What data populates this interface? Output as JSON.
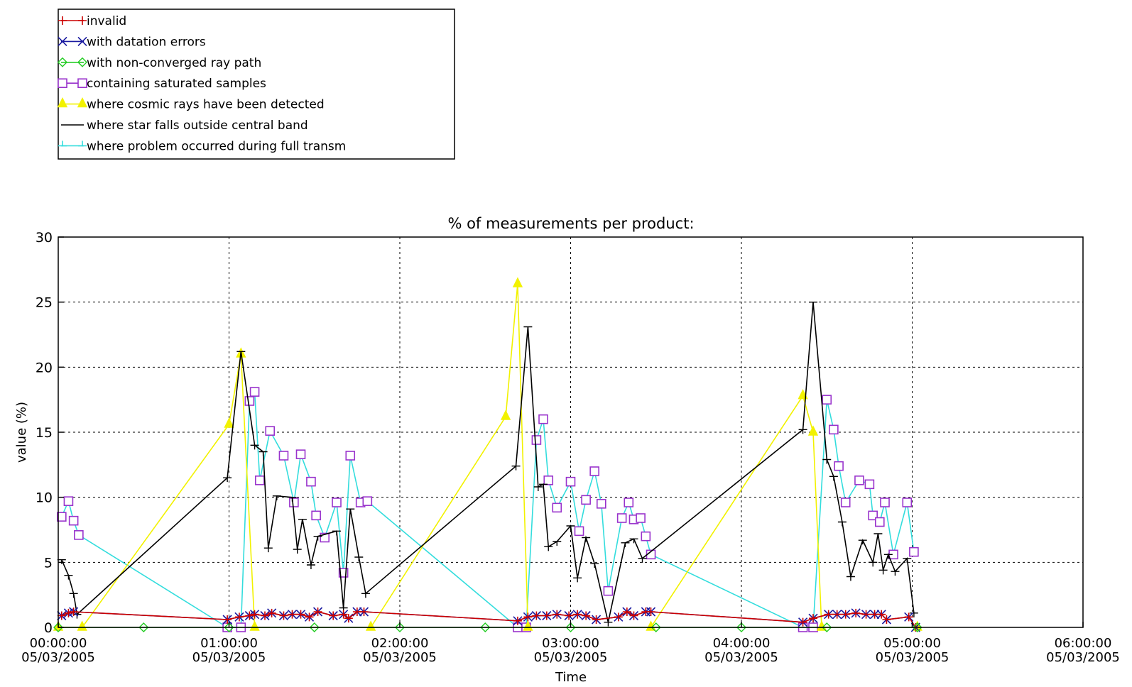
{
  "legend": [
    {
      "label": "invalid",
      "color": "#cc0000",
      "marker": "plus"
    },
    {
      "label": "with datation errors",
      "color": "#1a1aa0",
      "marker": "x"
    },
    {
      "label": "with non-converged ray path",
      "color": "#22cc22",
      "marker": "diamond"
    },
    {
      "label": "containing saturated samples",
      "color": "#9933cc",
      "marker": "square"
    },
    {
      "label": "where cosmic rays have been detected",
      "color": "#f2f200",
      "marker": "triangle"
    },
    {
      "label": "where star falls outside central band",
      "color": "#000000",
      "marker": "none"
    },
    {
      "label": "where problem occurred during full transm",
      "color": "#33dddd",
      "marker": "tick"
    }
  ],
  "chart_data": {
    "type": "line",
    "title": "% of measurements per product:",
    "xlabel": "Time",
    "ylabel": "value (%)",
    "x_unit": "hours since 00:00:00 05/03/2005",
    "xlim": [
      0,
      6
    ],
    "ylim": [
      0,
      30
    ],
    "grid": true,
    "legend_position": "top-left, above plot",
    "xticks": [
      {
        "value": 0,
        "line1": "00:00:00",
        "line2": "05/03/2005"
      },
      {
        "value": 1,
        "line1": "01:00:00",
        "line2": "05/03/2005"
      },
      {
        "value": 2,
        "line1": "02:00:00",
        "line2": "05/03/2005"
      },
      {
        "value": 3,
        "line1": "03:00:00",
        "line2": "05/03/2005"
      },
      {
        "value": 4,
        "line1": "04:00:00",
        "line2": "05/03/2005"
      },
      {
        "value": 5,
        "line1": "05:00:00",
        "line2": "05/03/2005"
      },
      {
        "value": 6,
        "line1": "06:00:00",
        "line2": "05/03/2005"
      }
    ],
    "yticks": [
      0,
      5,
      10,
      15,
      20,
      25,
      30
    ],
    "series": [
      {
        "name": "where problem occurred during full transm",
        "color": "#33dddd",
        "points": [
          [
            0.02,
            8.5
          ],
          [
            0.06,
            9.7
          ],
          [
            0.09,
            8.2
          ],
          [
            0.12,
            7.1
          ],
          [
            0.99,
            0
          ],
          [
            1.07,
            0
          ],
          [
            1.12,
            17.4
          ],
          [
            1.15,
            18.1
          ],
          [
            1.18,
            11.3
          ],
          [
            1.24,
            15.1
          ],
          [
            1.32,
            13.2
          ],
          [
            1.38,
            9.6
          ],
          [
            1.42,
            13.3
          ],
          [
            1.48,
            11.2
          ],
          [
            1.51,
            8.6
          ],
          [
            1.56,
            6.9
          ],
          [
            1.63,
            9.6
          ],
          [
            1.67,
            4.2
          ],
          [
            1.71,
            13.2
          ],
          [
            1.77,
            9.6
          ],
          [
            1.81,
            9.7
          ],
          [
            2.69,
            0
          ],
          [
            2.74,
            0
          ],
          [
            2.8,
            14.4
          ],
          [
            2.84,
            16.0
          ],
          [
            2.87,
            11.3
          ],
          [
            2.92,
            9.2
          ],
          [
            3.0,
            11.2
          ],
          [
            3.05,
            7.4
          ],
          [
            3.09,
            9.8
          ],
          [
            3.14,
            12.0
          ],
          [
            3.18,
            9.5
          ],
          [
            3.22,
            2.8
          ],
          [
            3.3,
            8.4
          ],
          [
            3.34,
            9.6
          ],
          [
            3.37,
            8.3
          ],
          [
            3.41,
            8.4
          ],
          [
            3.44,
            7.0
          ],
          [
            3.47,
            5.6
          ],
          [
            4.36,
            0
          ],
          [
            4.42,
            0
          ],
          [
            4.5,
            17.5
          ],
          [
            4.54,
            15.2
          ],
          [
            4.57,
            12.4
          ],
          [
            4.61,
            9.6
          ],
          [
            4.69,
            11.3
          ],
          [
            4.75,
            11.0
          ],
          [
            4.77,
            8.6
          ],
          [
            4.81,
            8.1
          ],
          [
            4.84,
            9.6
          ],
          [
            4.89,
            5.6
          ],
          [
            4.97,
            9.6
          ],
          [
            5.01,
            5.8
          ]
        ]
      },
      {
        "name": "containing saturated samples",
        "color": "#9933cc",
        "points": [
          [
            0.02,
            8.5
          ],
          [
            0.06,
            9.7
          ],
          [
            0.09,
            8.2
          ],
          [
            0.12,
            7.1
          ],
          [
            0.99,
            0
          ],
          [
            1.07,
            0
          ],
          [
            1.12,
            17.4
          ],
          [
            1.15,
            18.1
          ],
          [
            1.18,
            11.3
          ],
          [
            1.24,
            15.1
          ],
          [
            1.32,
            13.2
          ],
          [
            1.38,
            9.6
          ],
          [
            1.42,
            13.3
          ],
          [
            1.48,
            11.2
          ],
          [
            1.51,
            8.6
          ],
          [
            1.56,
            6.9
          ],
          [
            1.63,
            9.6
          ],
          [
            1.67,
            4.2
          ],
          [
            1.71,
            13.2
          ],
          [
            1.77,
            9.6
          ],
          [
            1.81,
            9.7
          ],
          [
            2.69,
            0
          ],
          [
            2.74,
            0
          ],
          [
            2.8,
            14.4
          ],
          [
            2.84,
            16.0
          ],
          [
            2.87,
            11.3
          ],
          [
            2.92,
            9.2
          ],
          [
            3.0,
            11.2
          ],
          [
            3.05,
            7.4
          ],
          [
            3.09,
            9.8
          ],
          [
            3.14,
            12.0
          ],
          [
            3.18,
            9.5
          ],
          [
            3.22,
            2.8
          ],
          [
            3.3,
            8.4
          ],
          [
            3.34,
            9.6
          ],
          [
            3.37,
            8.3
          ],
          [
            3.41,
            8.4
          ],
          [
            3.44,
            7.0
          ],
          [
            3.47,
            5.6
          ],
          [
            4.36,
            0
          ],
          [
            4.42,
            0
          ],
          [
            4.5,
            17.5
          ],
          [
            4.54,
            15.2
          ],
          [
            4.57,
            12.4
          ],
          [
            4.61,
            9.6
          ],
          [
            4.69,
            11.3
          ],
          [
            4.75,
            11.0
          ],
          [
            4.77,
            8.6
          ],
          [
            4.81,
            8.1
          ],
          [
            4.84,
            9.6
          ],
          [
            4.89,
            5.6
          ],
          [
            4.97,
            9.6
          ],
          [
            5.01,
            5.8
          ]
        ]
      },
      {
        "name": "where cosmic rays have been detected",
        "color": "#f2f200",
        "points": [
          [
            0.0,
            0
          ],
          [
            0.14,
            0
          ],
          [
            1.0,
            15.6
          ],
          [
            1.07,
            21.0
          ],
          [
            1.15,
            0
          ],
          [
            1.83,
            0
          ],
          [
            2.62,
            16.2
          ],
          [
            2.69,
            26.4
          ],
          [
            2.75,
            0
          ],
          [
            3.47,
            0
          ],
          [
            4.36,
            17.8
          ],
          [
            4.42,
            15.0
          ],
          [
            4.47,
            0
          ],
          [
            5.03,
            0
          ]
        ]
      },
      {
        "name": "where star falls outside central band",
        "color": "#000000",
        "points": [
          [
            0.02,
            5.2
          ],
          [
            0.06,
            4.0
          ],
          [
            0.09,
            2.6
          ],
          [
            0.11,
            1.0
          ],
          [
            0.99,
            11.5
          ],
          [
            1.07,
            21.2
          ],
          [
            1.15,
            14.0
          ],
          [
            1.2,
            13.5
          ],
          [
            1.23,
            6.1
          ],
          [
            1.28,
            10.1
          ],
          [
            1.37,
            10.0
          ],
          [
            1.4,
            6.0
          ],
          [
            1.43,
            8.3
          ],
          [
            1.48,
            4.8
          ],
          [
            1.52,
            7.0
          ],
          [
            1.63,
            7.4
          ],
          [
            1.67,
            1.5
          ],
          [
            1.71,
            9.1
          ],
          [
            1.76,
            5.4
          ],
          [
            1.8,
            2.6
          ],
          [
            2.68,
            12.4
          ],
          [
            2.75,
            23.1
          ],
          [
            2.81,
            10.8
          ],
          [
            2.84,
            11.0
          ],
          [
            2.87,
            6.2
          ],
          [
            2.92,
            6.6
          ],
          [
            3.0,
            7.8
          ],
          [
            3.04,
            3.8
          ],
          [
            3.09,
            6.9
          ],
          [
            3.14,
            4.9
          ],
          [
            3.22,
            0.4
          ],
          [
            3.32,
            6.5
          ],
          [
            3.37,
            6.8
          ],
          [
            3.42,
            5.3
          ],
          [
            4.36,
            15.2
          ],
          [
            4.42,
            25.0
          ],
          [
            4.5,
            12.9
          ],
          [
            4.54,
            11.6
          ],
          [
            4.59,
            8.1
          ],
          [
            4.64,
            3.9
          ],
          [
            4.71,
            6.7
          ],
          [
            4.77,
            5.0
          ],
          [
            4.8,
            7.2
          ],
          [
            4.83,
            4.4
          ],
          [
            4.86,
            5.6
          ],
          [
            4.9,
            4.3
          ],
          [
            4.97,
            5.3
          ],
          [
            5.01,
            1.1
          ]
        ]
      },
      {
        "name": "with datation errors",
        "color": "#1a1aa0",
        "points": [
          [
            0.02,
            0.9
          ],
          [
            0.06,
            1.1
          ],
          [
            0.09,
            1.2
          ],
          [
            0.99,
            0.6
          ],
          [
            1.06,
            0.8
          ],
          [
            1.12,
            0.9
          ],
          [
            1.15,
            1.0
          ],
          [
            1.21,
            0.9
          ],
          [
            1.25,
            1.1
          ],
          [
            1.32,
            0.9
          ],
          [
            1.37,
            1.0
          ],
          [
            1.42,
            1.0
          ],
          [
            1.47,
            0.8
          ],
          [
            1.52,
            1.2
          ],
          [
            1.61,
            0.9
          ],
          [
            1.67,
            1.0
          ],
          [
            1.7,
            0.7
          ],
          [
            1.75,
            1.2
          ],
          [
            1.79,
            1.2
          ],
          [
            2.69,
            0.5
          ],
          [
            2.75,
            0.8
          ],
          [
            2.8,
            0.9
          ],
          [
            2.86,
            0.9
          ],
          [
            2.92,
            1.0
          ],
          [
            2.99,
            0.9
          ],
          [
            3.04,
            1.0
          ],
          [
            3.09,
            0.9
          ],
          [
            3.15,
            0.6
          ],
          [
            3.28,
            0.8
          ],
          [
            3.33,
            1.2
          ],
          [
            3.37,
            0.9
          ],
          [
            3.44,
            1.2
          ],
          [
            3.47,
            1.2
          ],
          [
            4.36,
            0.4
          ],
          [
            4.42,
            0.7
          ],
          [
            4.51,
            1.0
          ],
          [
            4.56,
            1.0
          ],
          [
            4.61,
            1.0
          ],
          [
            4.67,
            1.1
          ],
          [
            4.73,
            1.0
          ],
          [
            4.78,
            1.0
          ],
          [
            4.82,
            1.0
          ],
          [
            4.85,
            0.6
          ],
          [
            4.98,
            0.8
          ],
          [
            5.02,
            0.0
          ]
        ]
      },
      {
        "name": "invalid",
        "color": "#cc0000",
        "points": [
          [
            0.02,
            0.9
          ],
          [
            0.06,
            1.1
          ],
          [
            0.09,
            1.2
          ],
          [
            0.99,
            0.6
          ],
          [
            1.06,
            0.8
          ],
          [
            1.12,
            0.9
          ],
          [
            1.15,
            1.0
          ],
          [
            1.21,
            0.9
          ],
          [
            1.25,
            1.1
          ],
          [
            1.32,
            0.9
          ],
          [
            1.37,
            1.0
          ],
          [
            1.42,
            1.0
          ],
          [
            1.47,
            0.8
          ],
          [
            1.52,
            1.2
          ],
          [
            1.61,
            0.9
          ],
          [
            1.67,
            1.0
          ],
          [
            1.7,
            0.7
          ],
          [
            1.75,
            1.2
          ],
          [
            1.79,
            1.2
          ],
          [
            2.69,
            0.5
          ],
          [
            2.75,
            0.8
          ],
          [
            2.8,
            0.9
          ],
          [
            2.86,
            0.9
          ],
          [
            2.92,
            1.0
          ],
          [
            2.99,
            0.9
          ],
          [
            3.04,
            1.0
          ],
          [
            3.09,
            0.9
          ],
          [
            3.15,
            0.6
          ],
          [
            3.28,
            0.8
          ],
          [
            3.33,
            1.2
          ],
          [
            3.37,
            0.9
          ],
          [
            3.44,
            1.2
          ],
          [
            3.47,
            1.2
          ],
          [
            4.36,
            0.4
          ],
          [
            4.42,
            0.7
          ],
          [
            4.51,
            1.0
          ],
          [
            4.56,
            1.0
          ],
          [
            4.61,
            1.0
          ],
          [
            4.67,
            1.1
          ],
          [
            4.73,
            1.0
          ],
          [
            4.78,
            1.0
          ],
          [
            4.82,
            1.0
          ],
          [
            4.85,
            0.6
          ],
          [
            4.98,
            0.8
          ],
          [
            5.02,
            0.0
          ]
        ]
      },
      {
        "name": "with non-converged ray path",
        "color": "#22cc22",
        "points": [
          [
            0.0,
            0
          ],
          [
            0.5,
            0
          ],
          [
            1.0,
            0
          ],
          [
            1.5,
            0
          ],
          [
            2.0,
            0
          ],
          [
            2.5,
            0
          ],
          [
            3.0,
            0
          ],
          [
            3.5,
            0
          ],
          [
            4.0,
            0
          ],
          [
            4.5,
            0
          ],
          [
            5.03,
            0
          ]
        ]
      }
    ]
  }
}
